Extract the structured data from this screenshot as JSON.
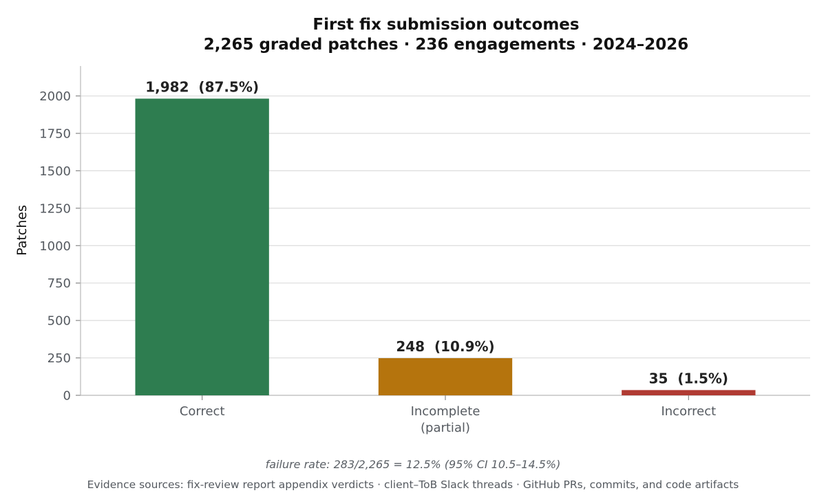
{
  "chart_data": {
    "type": "bar",
    "title": "First fix submission outcomes",
    "subtitle": "2,265 graded patches · 236 engagements · 2024–2026",
    "ylabel": "Patches",
    "xlabel": "",
    "ylim": [
      0,
      2200
    ],
    "yticks": [
      0,
      250,
      500,
      750,
      1000,
      1250,
      1500,
      1750,
      2000
    ],
    "grid": true,
    "categories": [
      [
        "Correct"
      ],
      [
        "Incomplete",
        "(partial)"
      ],
      [
        "Incorrect"
      ]
    ],
    "values": [
      1982,
      248,
      35
    ],
    "data_labels": [
      "1,982  (87.5%)",
      "248  (10.9%)",
      "35  (1.5%)"
    ],
    "colors": [
      "#2e7d50",
      "#b5740d",
      "#b03a32"
    ],
    "annotation": "failure rate: 283/2,265 = 12.5% (95% CI 10.5–14.5%)",
    "sources": "Evidence sources: fix-review report appendix verdicts · client–ToB Slack threads · GitHub PRs, commits, and code artifacts"
  }
}
